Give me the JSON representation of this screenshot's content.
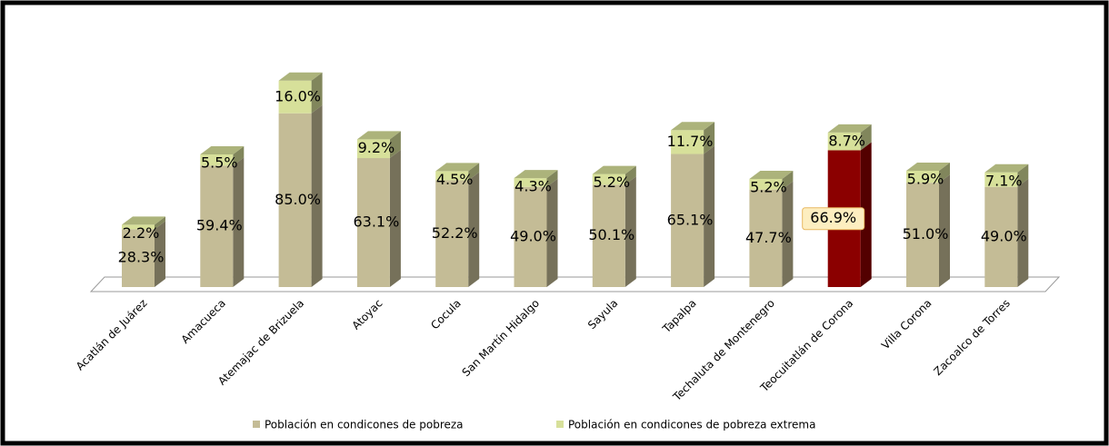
{
  "chart_data": {
    "type": "bar3d_stacked",
    "categories": [
      "Acatlán de Juárez",
      "Amacueca",
      "Atemajac de Brizuela",
      "Atoyac",
      "Cocula",
      "San Martín Hidalgo",
      "Sayula",
      "Tapalpa",
      "Techaluta de Montenegro",
      "Teocuitatlán de Corona",
      "Villa Corona",
      "Zacoalco de Torres"
    ],
    "series": [
      {
        "name": "Población en condicones de pobreza",
        "color": "#c4bc96",
        "colors": [
          "#c4bc96",
          "#c4bc96",
          "#c4bc96",
          "#c4bc96",
          "#c4bc96",
          "#c4bc96",
          "#c4bc96",
          "#c4bc96",
          "#c4bc96",
          "#8b0000",
          "#c4bc96",
          "#c4bc96"
        ],
        "values": [
          28.3,
          59.4,
          85.0,
          63.1,
          52.2,
          49.0,
          50.1,
          65.1,
          47.7,
          66.9,
          51.0,
          49.0
        ],
        "value_labels": [
          "28.3%",
          "59.4%",
          "85.0%",
          "63.1%",
          "52.2%",
          "49.0%",
          "50.1%",
          "65.1%",
          "47.7%",
          "66.9%",
          "51.0%",
          "49.0%"
        ]
      },
      {
        "name": "Población en condicones de pobreza extrema",
        "color": "#d7e09a",
        "values": [
          2.2,
          5.5,
          16.0,
          9.2,
          4.5,
          4.3,
          5.2,
          11.7,
          5.2,
          8.7,
          5.9,
          7.1
        ],
        "value_labels": [
          "2.2%",
          "5.5%",
          "16.0%",
          "9.2%",
          "4.5%",
          "4.3%",
          "5.2%",
          "11.7%",
          "5.2%",
          "8.7%",
          "5.9%",
          "7.1%"
        ]
      }
    ],
    "legend": "bottom"
  }
}
